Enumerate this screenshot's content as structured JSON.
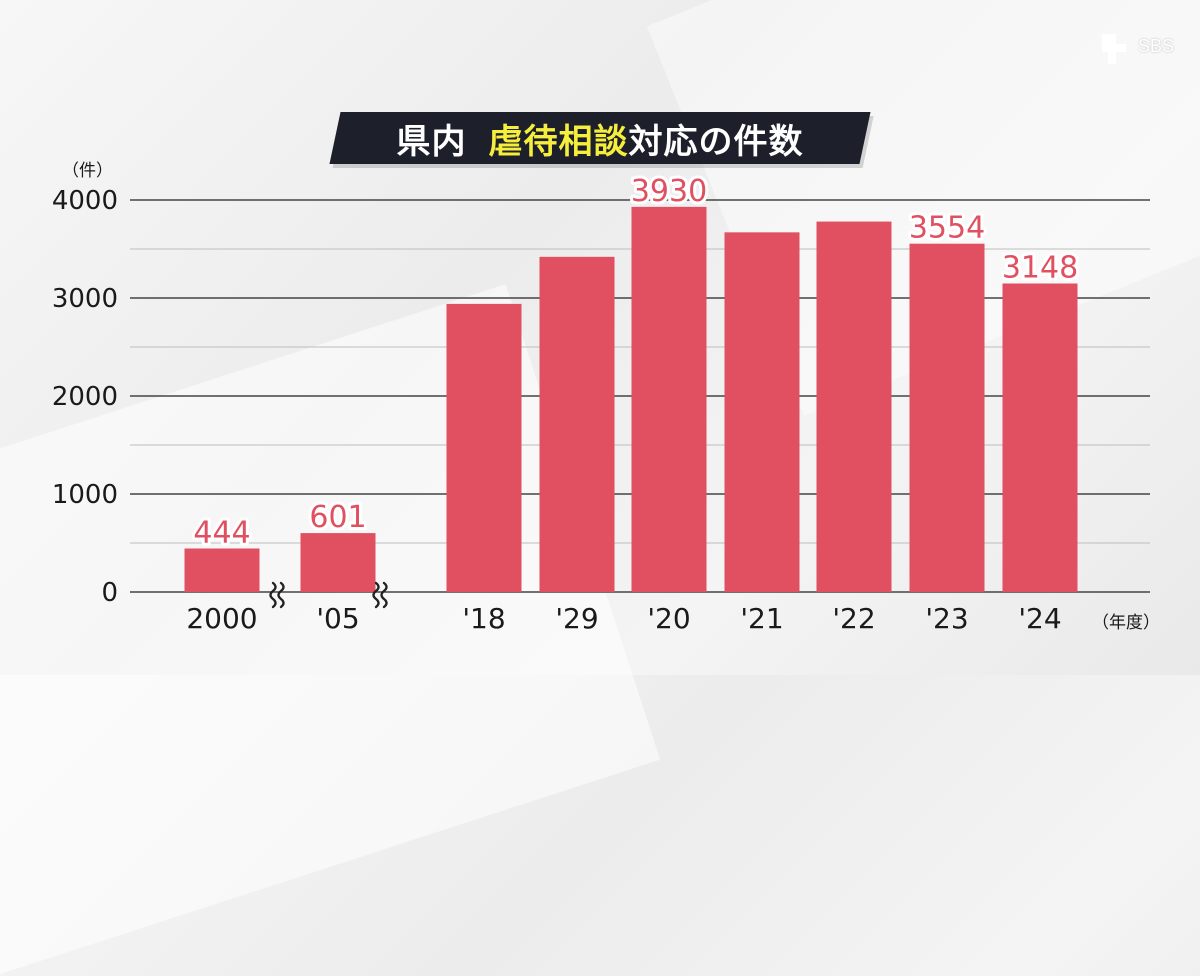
{
  "title": {
    "part1": "県内",
    "highlight": "虐待相談",
    "part2": "対応の件数"
  },
  "logo": {
    "text": "SBS"
  },
  "colors": {
    "bar": "#e05060",
    "label": "#e05060",
    "highlight": "#f5ee3c",
    "title_bg": "#1d1f2a"
  },
  "chart_data": {
    "type": "bar",
    "y_unit_label": "（件）",
    "x_unit_label": "（年度）",
    "categories": [
      "2000",
      "'05",
      "'18",
      "'29",
      "'20",
      "'21",
      "'22",
      "'23",
      "'24"
    ],
    "values": [
      444,
      601,
      2940,
      3420,
      3930,
      3670,
      3780,
      3554,
      3148
    ],
    "data_labels": [
      "444",
      "601",
      "",
      "",
      "3930",
      "",
      "",
      "3554",
      "3148"
    ],
    "axis_breaks_after": [
      "2000",
      "'05"
    ],
    "y_ticks": [
      "0",
      "1000",
      "2000",
      "3000",
      "4000"
    ],
    "ylim": [
      0,
      4000
    ],
    "grid": true
  }
}
